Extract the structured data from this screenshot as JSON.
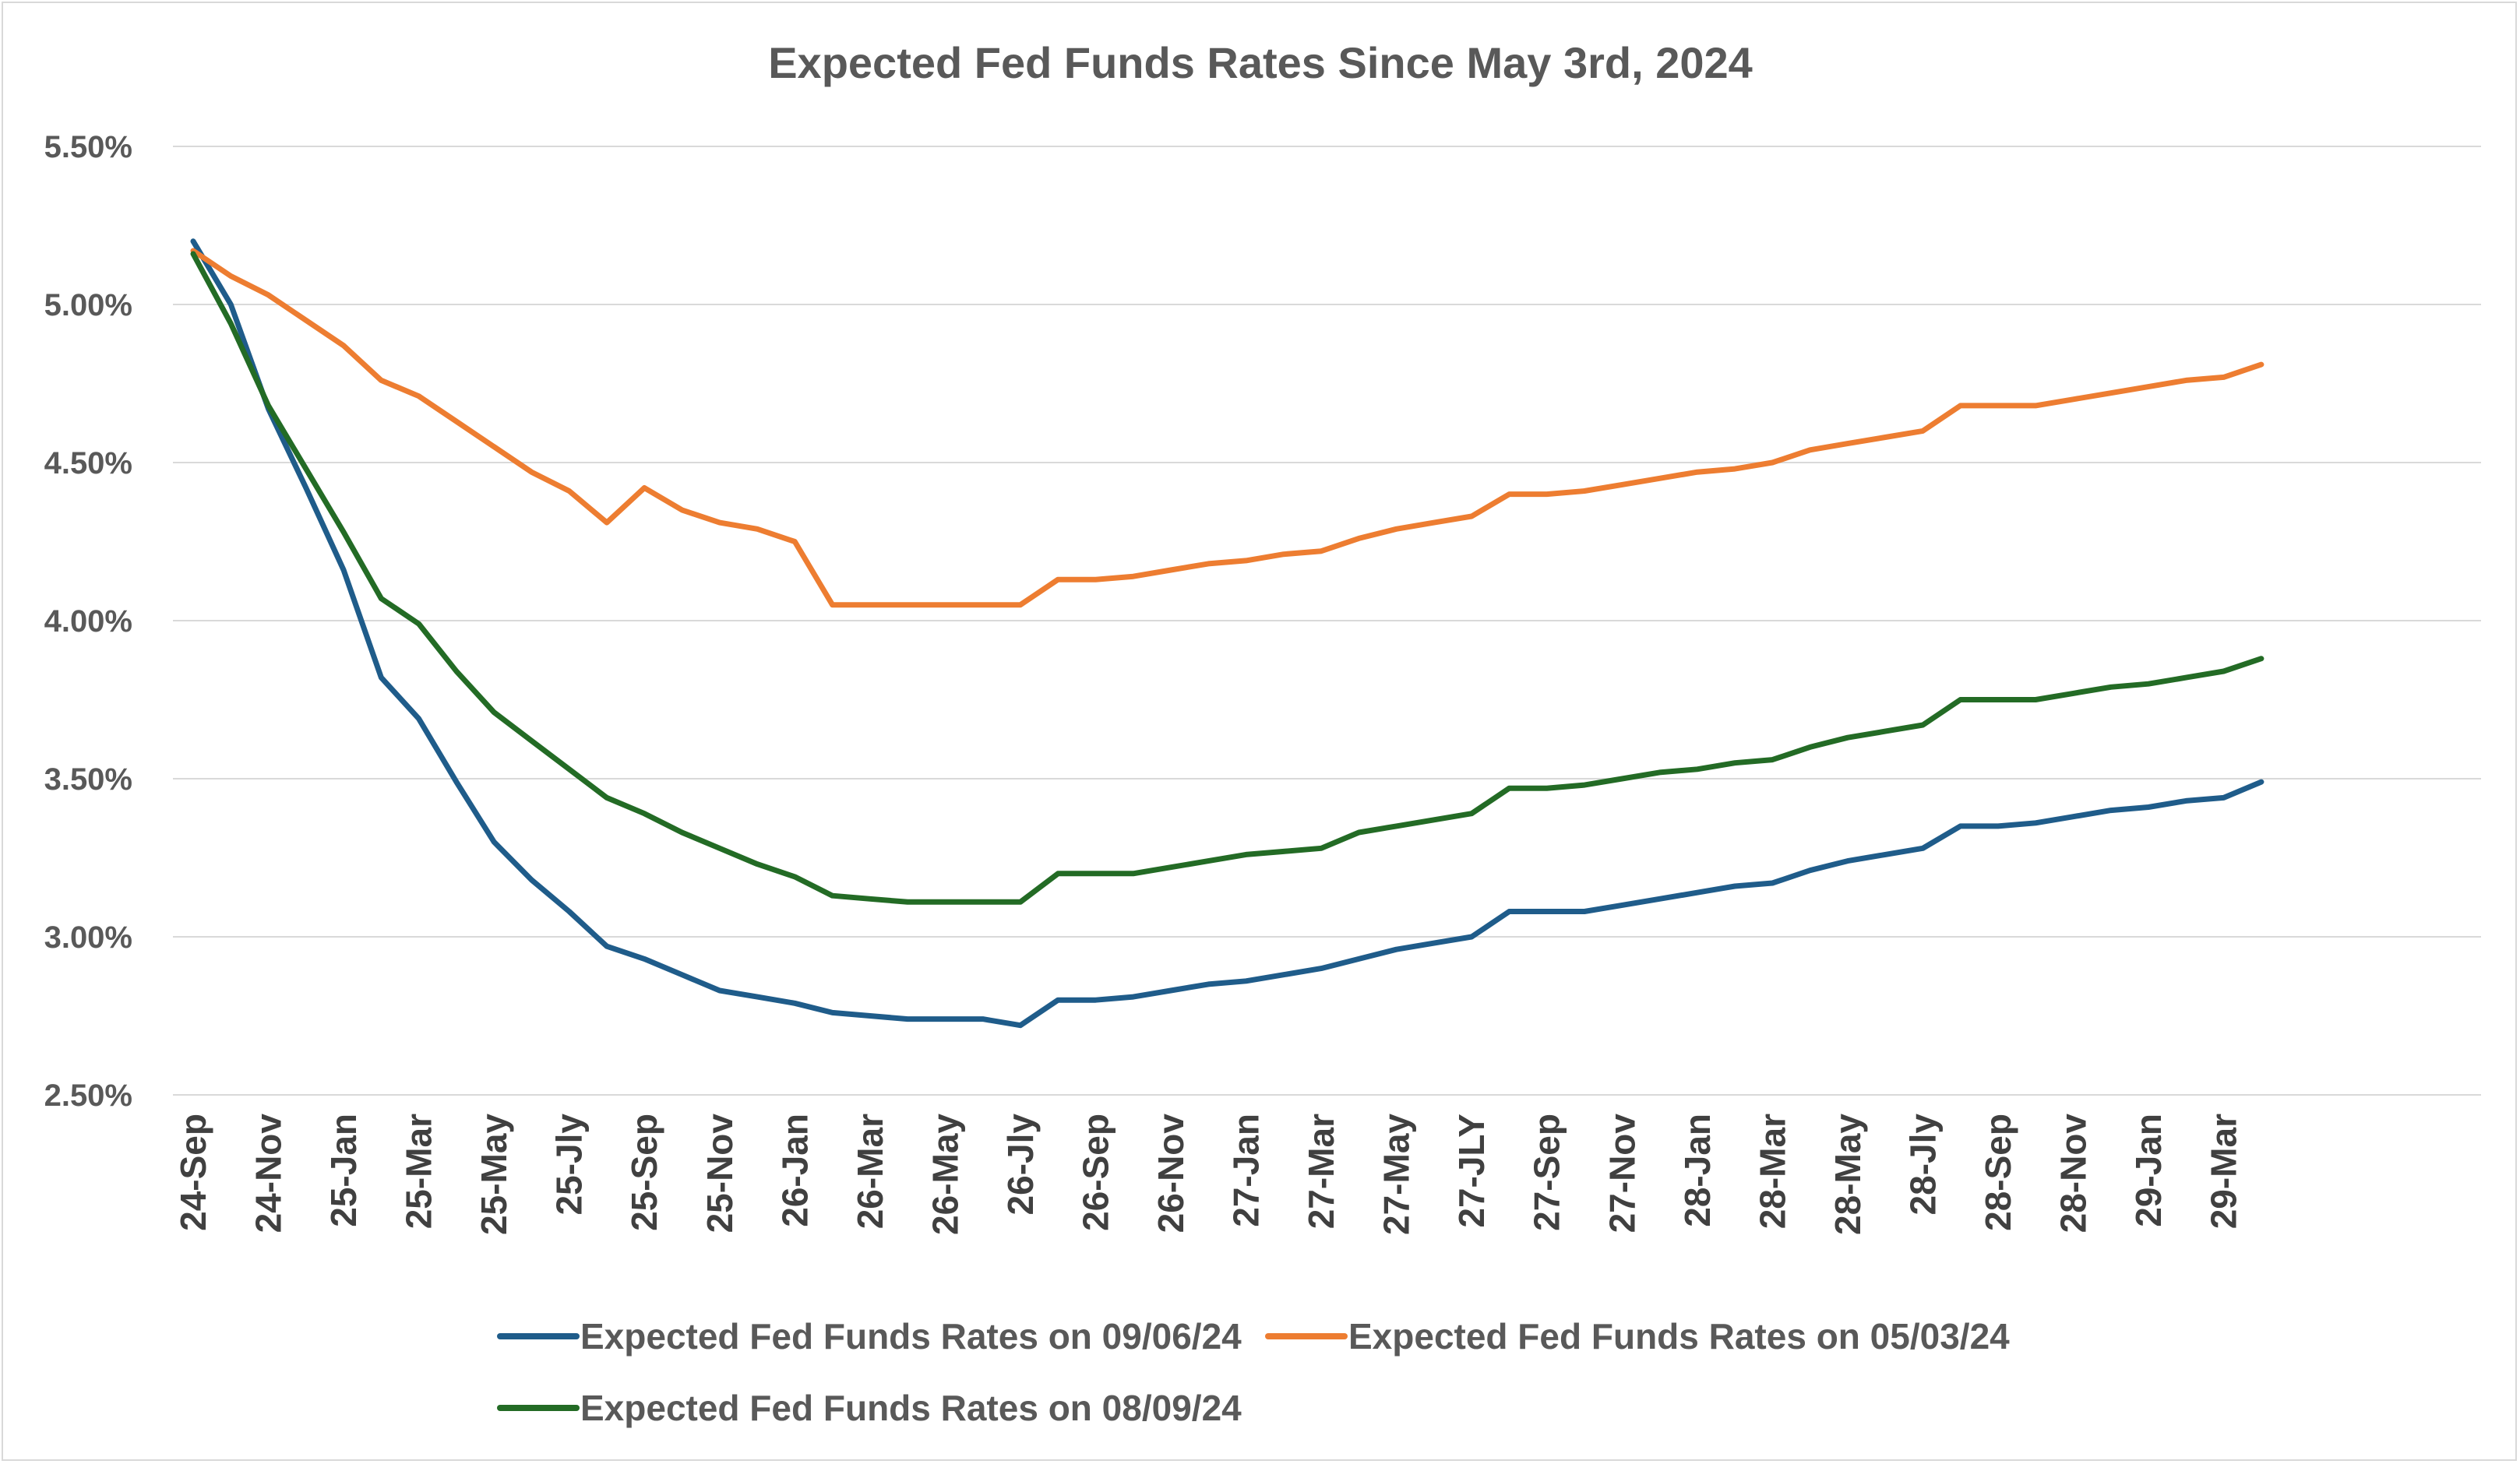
{
  "chart_data": {
    "type": "line",
    "title": "Expected Fed Funds Rates Since May 3rd, 2024",
    "xlabel": "",
    "ylabel": "",
    "ylim": [
      0.025,
      0.055
    ],
    "y_ticks": [
      0.025,
      0.03,
      0.035,
      0.04,
      0.045,
      0.05,
      0.055
    ],
    "y_tick_labels": [
      "2.50%",
      "3.00%",
      "3.50%",
      "4.00%",
      "4.50%",
      "5.00%",
      "5.50%"
    ],
    "x_tick_labels": [
      "24-Sep",
      "24-Nov",
      "25-Jan",
      "25-Mar",
      "25-May",
      "25-Jly",
      "25-Sep",
      "25-Nov",
      "26-Jan",
      "26-Mar",
      "26-May",
      "26-Jly",
      "26-Sep",
      "26-Nov",
      "27-Jan",
      "27-Mar",
      "27-May",
      "27-JLY",
      "27-Sep",
      "27-Nov",
      "28-Jan",
      "28-Mar",
      "28-May",
      "28-Jly",
      "28-Sep",
      "28-Nov",
      "29-Jan",
      "29-Mar"
    ],
    "x": [
      "24-Sep",
      "24-Oct",
      "24-Nov",
      "24-Dec",
      "25-Jan",
      "25-Feb",
      "25-Mar",
      "25-Apr",
      "25-May",
      "25-Jun",
      "25-Jly",
      "25-Aug",
      "25-Sep",
      "25-Oct",
      "25-Nov",
      "25-Dec",
      "26-Jan",
      "26-Feb",
      "26-Mar",
      "26-Apr",
      "26-May",
      "26-Jun",
      "26-Jly",
      "26-Aug",
      "26-Sep",
      "26-Oct",
      "26-Nov",
      "26-Dec",
      "27-Jan",
      "27-Feb",
      "27-Mar",
      "27-Apr",
      "27-May",
      "27-Jun",
      "27-JLY",
      "27-Aug",
      "27-Sep",
      "27-Oct",
      "27-Nov",
      "27-Dec",
      "28-Jan",
      "28-Feb",
      "28-Mar",
      "28-Apr",
      "28-May",
      "28-Jun",
      "28-Jly",
      "28-Aug",
      "28-Sep",
      "28-Oct",
      "28-Nov",
      "28-Dec",
      "29-Jan",
      "29-Feb",
      "29-Mar",
      "29-Apr"
    ],
    "series": [
      {
        "name": "Expected Fed Funds Rates on 09/06/24",
        "color": "#1f5c8a",
        "values": [
          0.052,
          0.05,
          0.0467,
          0.0442,
          0.0416,
          0.0382,
          0.0369,
          0.0349,
          0.033,
          0.0318,
          0.0308,
          0.0297,
          0.0293,
          0.0288,
          0.0283,
          0.0281,
          0.0279,
          0.0276,
          0.0275,
          0.0274,
          0.0274,
          0.0274,
          0.0272,
          0.028,
          0.028,
          0.0281,
          0.0283,
          0.0285,
          0.0286,
          0.0288,
          0.029,
          0.0293,
          0.0296,
          0.0298,
          0.03,
          0.0308,
          0.0308,
          0.0308,
          0.031,
          0.0312,
          0.0314,
          0.0316,
          0.0317,
          0.0321,
          0.0324,
          0.0326,
          0.0328,
          0.0335,
          0.0335,
          0.0336,
          0.0338,
          0.034,
          0.0341,
          0.0343,
          0.0344,
          0.0349
        ]
      },
      {
        "name": "Expected Fed Funds Rates on 05/03/24",
        "color": "#ed7d31",
        "values": [
          0.0517,
          0.0509,
          0.0503,
          0.0495,
          0.0487,
          0.0476,
          0.0471,
          0.0463,
          0.0455,
          0.0447,
          0.0441,
          0.0431,
          0.0442,
          0.0435,
          0.0431,
          0.0429,
          0.0425,
          0.0405,
          0.0405,
          0.0405,
          0.0405,
          0.0405,
          0.0405,
          0.0413,
          0.0413,
          0.0414,
          0.0416,
          0.0418,
          0.0419,
          0.0421,
          0.0422,
          0.0426,
          0.0429,
          0.0431,
          0.0433,
          0.044,
          0.044,
          0.0441,
          0.0443,
          0.0445,
          0.0447,
          0.0448,
          0.045,
          0.0454,
          0.0456,
          0.0458,
          0.046,
          0.0468,
          0.0468,
          0.0468,
          0.047,
          0.0472,
          0.0474,
          0.0476,
          0.0477,
          0.0481
        ]
      },
      {
        "name": "Expected Fed Funds Rates on 08/09/24",
        "color": "#236b25",
        "values": [
          0.0516,
          0.0494,
          0.0468,
          0.0448,
          0.0428,
          0.0407,
          0.0399,
          0.0384,
          0.0371,
          0.0362,
          0.0353,
          0.0344,
          0.0339,
          0.0333,
          0.0328,
          0.0323,
          0.0319,
          0.0313,
          0.0312,
          0.0311,
          0.0311,
          0.0311,
          0.0311,
          0.032,
          0.032,
          0.032,
          0.0322,
          0.0324,
          0.0326,
          0.0327,
          0.0328,
          0.0333,
          0.0335,
          0.0337,
          0.0339,
          0.0347,
          0.0347,
          0.0348,
          0.035,
          0.0352,
          0.0353,
          0.0355,
          0.0356,
          0.036,
          0.0363,
          0.0365,
          0.0367,
          0.0375,
          0.0375,
          0.0375,
          0.0377,
          0.0379,
          0.038,
          0.0382,
          0.0384,
          0.0388
        ]
      }
    ],
    "grid": true,
    "legend_position": "bottom"
  }
}
